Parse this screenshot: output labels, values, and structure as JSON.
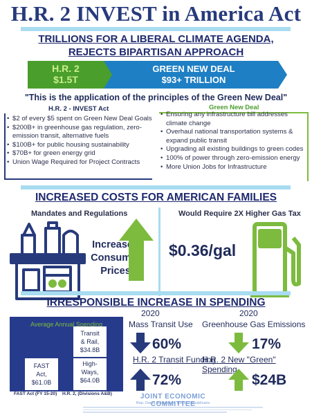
{
  "header": {
    "title": "H.R. 2 INVEST in America Act",
    "subtitle_line1": "TRILLIONS FOR A LIBERAL CLIMATE AGENDA,",
    "subtitle_line2": "REJECTS BIPARTISAN APPROACH"
  },
  "banner": {
    "left_line1": "H.R. 2",
    "left_line2": "$1.5T",
    "right_line1": "GREEN NEW DEAL",
    "right_line2": "$93+ TRILLION"
  },
  "quote": "\"This is the application of the principles of the Green New Deal\"",
  "hr2_column": {
    "heading": "H.R. 2 - INVEST Act",
    "items": [
      "$2 of every $5 spent on Green New Deal Goals",
      "$200B+ in greenhouse gas regulation, zero-emission transit, alternative fuels",
      "$100B+ for public housing sustainability",
      "$70B+ for green energy grid",
      "Union Wage Required for Project Contracts"
    ]
  },
  "gnd_column": {
    "heading": "Green New Deal",
    "items": [
      "Ensuring any infrastructure bill addresses climate change",
      "Overhaul national transportation systems & expand public transit",
      "Upgrading all existing buildings to green codes",
      "100% of power through zero-emission energy",
      "More Union Jobs for Infrastructure"
    ]
  },
  "costs_section": {
    "title": "INCREASED COSTS FOR AMERICAN FAMILIES",
    "left_heading": "Mandates and Regulations",
    "left_big_line1": "Increased",
    "left_big_line2": "Consumer",
    "left_big_line3": "Prices",
    "right_heading": "Would Require 2X Higher Gas Tax",
    "gas_value": "$0.36/gal"
  },
  "spending_section": {
    "title": "IRRESPONSIBLE INCREASE IN SPENDING",
    "chart_title": "Average Annual Spending",
    "fast_label_line1": "FAST",
    "fast_label_line2": "Act,",
    "fast_label_line3": "$61.0B",
    "hr2_top_line1": "Transit",
    "hr2_top_line2": "& Rail,",
    "hr2_top_line3": "$34.8B",
    "hr2_bottom_line1": "High-",
    "hr2_bottom_line2": "Ways,",
    "hr2_bottom_line3": "$64.0B",
    "fast_axis": "FAST Act (FY 15-20)",
    "hr2_axis": "H.R. 2, (Divisions A&B)",
    "year_left": "2020",
    "year_right": "2020",
    "transit_label": "Mass Transit Use",
    "transit_pct": "60%",
    "ghg_label": "Greenhouse Gas Emissions",
    "ghg_pct": "17%",
    "transit_funding_label": "H.R. 2 Transit Funding",
    "transit_funding_pct": "72%",
    "green_spending_label": "H.R. 2 New \"Green\" Spending",
    "green_spending_value": "$24B"
  },
  "footer": {
    "org": "JOINT ECONOMIC COMMITTEE",
    "member": "Rep. David Schweikert, House Republicans"
  },
  "colors": {
    "navy": "#273a7c",
    "green": "#4a9e2c",
    "light_blue": "#a8dcf0",
    "chart_blue": "#273b8c",
    "arrow_green": "#7cbb3e"
  }
}
